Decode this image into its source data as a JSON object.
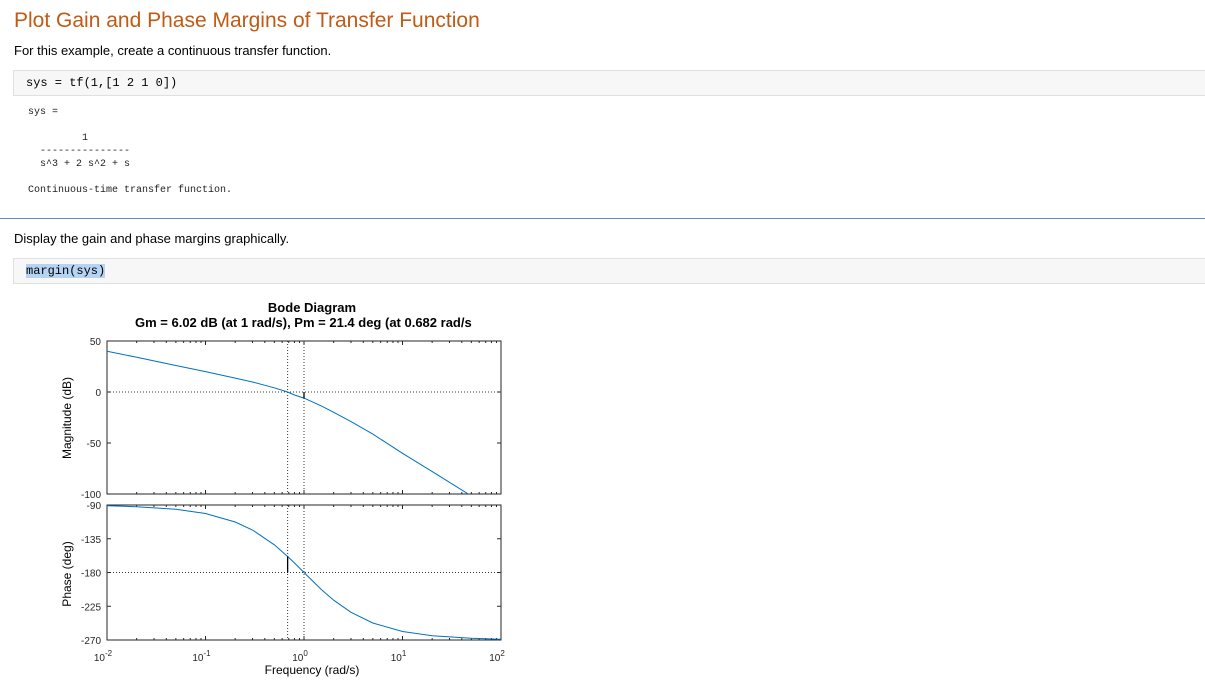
{
  "page": {
    "title": "Plot Gain and Phase Margins of Transfer Function",
    "intro": "For this example, create a continuous transfer function.",
    "code1": "sys = tf(1,[1 2 1 0])",
    "output": {
      "lhs": "sys =",
      "numerator": "1",
      "bar": "---------------",
      "denominator": "s^3 + 2 s^2 + s",
      "note": "Continuous-time transfer function."
    },
    "para2": "Display the gain and phase margins graphically.",
    "code2": "margin(sys)"
  },
  "chart_data": {
    "type": "line",
    "title": "Bode Diagram",
    "subtitle": "Gm = 6.02 dB (at 1 rad/s),  Pm = 21.4 deg (at 0.682 rad/s",
    "xlabel": "Frequency  (rad/s)",
    "xscale": "log",
    "xlim": [
      0.01,
      100
    ],
    "xticks": [
      {
        "value": 0.01,
        "base": "10",
        "exp": "-2"
      },
      {
        "value": 0.1,
        "base": "10",
        "exp": "-1"
      },
      {
        "value": 1,
        "base": "10",
        "exp": "0"
      },
      {
        "value": 10,
        "base": "10",
        "exp": "1"
      },
      {
        "value": 100,
        "base": "10",
        "exp": "2"
      }
    ],
    "line_color": "#0072bd",
    "panels": [
      {
        "name": "magnitude",
        "ylabel": "Magnitude (dB)",
        "ylim": [
          -100,
          50
        ],
        "yticks": [
          "50",
          "0",
          "-50",
          "-100"
        ],
        "reference_line": 0,
        "series": {
          "x": [
            0.01,
            0.02,
            0.05,
            0.1,
            0.2,
            0.3,
            0.5,
            0.682,
            0.8,
            1,
            1.5,
            2,
            3,
            5,
            10,
            20,
            50,
            100
          ],
          "y": [
            40,
            33.98,
            25.99,
            19.96,
            13.64,
            9.81,
            4.08,
            0,
            -2.91,
            -6.02,
            -13.62,
            -19.93,
            -29.03,
            -41.23,
            -60.09,
            -78.07,
            -101.9,
            -120
          ]
        }
      },
      {
        "name": "phase",
        "ylabel": "Phase (deg)",
        "ylim": [
          -270,
          -90
        ],
        "yticks": [
          "-90",
          "-135",
          "-180",
          "-225",
          "-270"
        ],
        "reference_line": -180,
        "series": {
          "x": [
            0.01,
            0.02,
            0.05,
            0.1,
            0.2,
            0.3,
            0.5,
            0.682,
            0.8,
            1,
            1.5,
            2,
            3,
            5,
            10,
            20,
            50,
            100
          ],
          "y": [
            -91.1,
            -92.3,
            -95.7,
            -101.4,
            -112.6,
            -123.4,
            -143.1,
            -158.6,
            -167.3,
            -180,
            -202.6,
            -216.9,
            -233.1,
            -247.4,
            -258.6,
            -264.3,
            -267.7,
            -268.9
          ]
        }
      }
    ],
    "gain_margin": {
      "value_db": 6.02,
      "frequency": 1
    },
    "phase_margin": {
      "value_deg": 21.4,
      "frequency": 0.682
    }
  }
}
